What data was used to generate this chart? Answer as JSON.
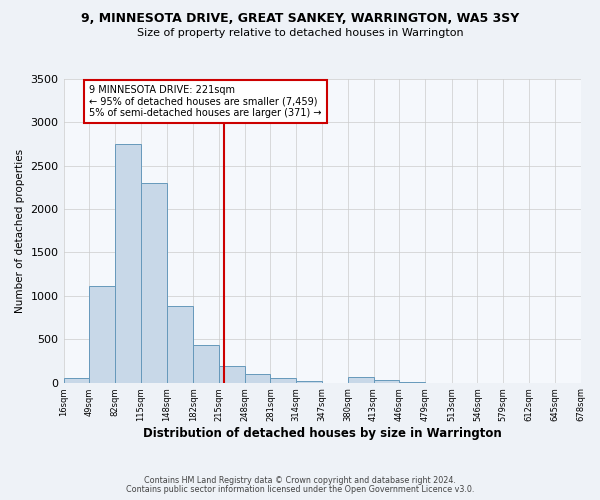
{
  "title_line1": "9, MINNESOTA DRIVE, GREAT SANKEY, WARRINGTON, WA5 3SY",
  "title_line2": "Size of property relative to detached houses in Warrington",
  "xlabel": "Distribution of detached houses by size in Warrington",
  "ylabel": "Number of detached properties",
  "bar_edges": [
    16,
    49,
    82,
    115,
    148,
    182,
    215,
    248,
    281,
    314,
    347,
    380,
    413,
    446,
    479,
    513,
    546,
    579,
    612,
    645,
    678
  ],
  "bar_heights": [
    50,
    1110,
    2750,
    2300,
    880,
    430,
    190,
    95,
    50,
    20,
    0,
    60,
    30,
    10,
    0,
    0,
    0,
    0,
    0,
    0
  ],
  "bar_color": "#c8d8e8",
  "bar_edge_color": "#6699bb",
  "vline_x": 221,
  "vline_color": "#cc0000",
  "annotation_lines": [
    "9 MINNESOTA DRIVE: 221sqm",
    "← 95% of detached houses are smaller (7,459)",
    "5% of semi-detached houses are larger (371) →"
  ],
  "ylim": [
    0,
    3500
  ],
  "xlim": [
    16,
    678
  ],
  "yticks": [
    0,
    500,
    1000,
    1500,
    2000,
    2500,
    3000,
    3500
  ],
  "xtick_labels": [
    "16sqm",
    "49sqm",
    "82sqm",
    "115sqm",
    "148sqm",
    "182sqm",
    "215sqm",
    "248sqm",
    "281sqm",
    "314sqm",
    "347sqm",
    "380sqm",
    "413sqm",
    "446sqm",
    "479sqm",
    "513sqm",
    "546sqm",
    "579sqm",
    "612sqm",
    "645sqm",
    "678sqm"
  ],
  "xtick_positions": [
    16,
    49,
    82,
    115,
    148,
    182,
    215,
    248,
    281,
    314,
    347,
    380,
    413,
    446,
    479,
    513,
    546,
    579,
    612,
    645,
    678
  ],
  "footer_line1": "Contains HM Land Registry data © Crown copyright and database right 2024.",
  "footer_line2": "Contains public sector information licensed under the Open Government Licence v3.0.",
  "bg_color": "#eef2f7",
  "plot_bg_color": "#f5f8fc"
}
